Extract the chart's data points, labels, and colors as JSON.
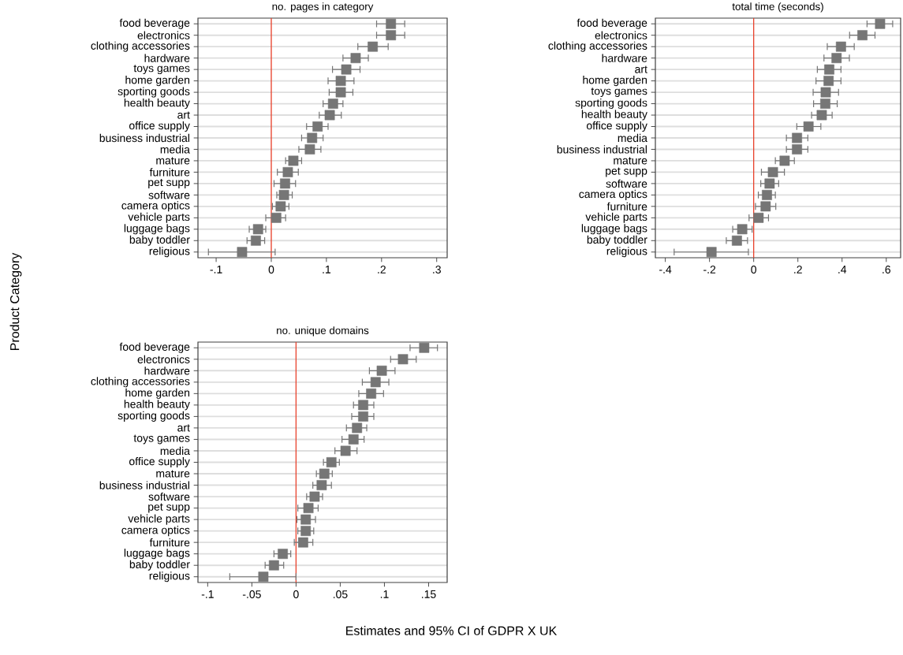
{
  "chart_data": [
    {
      "type": "scatter",
      "orientation": "horizontal",
      "title": "no. pages in category",
      "ylabel": "Product Category",
      "marker": "square",
      "color": "#767676",
      "grid": "y",
      "categories": [
        "food beverage",
        "electronics",
        "clothing accessories",
        "hardware",
        "toys games",
        "home garden",
        "sporting goods",
        "health beauty",
        "art",
        "office supply",
        "business industrial",
        "media",
        "mature",
        "furniture",
        "pet supp",
        "software",
        "camera optics",
        "vehicle parts",
        "luggage bags",
        "baby toddler",
        "religious"
      ],
      "values": [
        0.217,
        0.217,
        0.184,
        0.153,
        0.136,
        0.126,
        0.126,
        0.112,
        0.106,
        0.084,
        0.074,
        0.07,
        0.04,
        0.03,
        0.025,
        0.023,
        0.017,
        0.009,
        -0.024,
        -0.028,
        -0.053
      ],
      "errors": [
        [
          0.191,
          0.242
        ],
        [
          0.191,
          0.242
        ],
        [
          0.157,
          0.212
        ],
        [
          0.13,
          0.176
        ],
        [
          0.111,
          0.161
        ],
        [
          0.103,
          0.15
        ],
        [
          0.105,
          0.148
        ],
        [
          0.094,
          0.13
        ],
        [
          0.087,
          0.127
        ],
        [
          0.064,
          0.103
        ],
        [
          0.055,
          0.094
        ],
        [
          0.05,
          0.09
        ],
        [
          0.026,
          0.055
        ],
        [
          0.011,
          0.049
        ],
        [
          0.005,
          0.044
        ],
        [
          0.01,
          0.038
        ],
        [
          0.002,
          0.032
        ],
        [
          -0.01,
          0.026
        ],
        [
          -0.04,
          -0.01
        ],
        [
          -0.044,
          -0.012
        ],
        [
          -0.114,
          0.007
        ]
      ],
      "xlim": [
        -0.133,
        0.319
      ],
      "xticks": [
        {
          "value": -0.1,
          "label": "-.1"
        },
        0,
        {
          "value": 0.1,
          "label": ".1"
        },
        {
          "value": 0.2,
          "label": ".2"
        },
        {
          "value": 0.3,
          "label": ".3"
        }
      ],
      "ref_lines": [
        {
          "axis": "x",
          "value": 0,
          "color": "#e8412c"
        }
      ]
    },
    {
      "type": "scatter",
      "orientation": "horizontal",
      "title": "total time (seconds)",
      "marker": "square",
      "color": "#767676",
      "grid": "y",
      "categories": [
        "food beverage",
        "electronics",
        "clothing accessories",
        "hardware",
        "art",
        "home garden",
        "toys games",
        "sporting goods",
        "health beauty",
        "office supply",
        "media",
        "business industrial",
        "mature",
        "pet supp",
        "software",
        "camera optics",
        "furniture",
        "vehicle parts",
        "luggage bags",
        "baby toddler",
        "religious"
      ],
      "values": [
        0.572,
        0.492,
        0.395,
        0.375,
        0.342,
        0.339,
        0.326,
        0.324,
        0.308,
        0.248,
        0.196,
        0.196,
        0.14,
        0.087,
        0.072,
        0.06,
        0.054,
        0.022,
        -0.052,
        -0.076,
        -0.191
      ],
      "errors": [
        [
          0.513,
          0.629
        ],
        [
          0.434,
          0.549
        ],
        [
          0.333,
          0.455
        ],
        [
          0.318,
          0.433
        ],
        [
          0.288,
          0.395
        ],
        [
          0.282,
          0.395
        ],
        [
          0.269,
          0.384
        ],
        [
          0.271,
          0.378
        ],
        [
          0.262,
          0.355
        ],
        [
          0.195,
          0.304
        ],
        [
          0.148,
          0.245
        ],
        [
          0.148,
          0.245
        ],
        [
          0.098,
          0.184
        ],
        [
          0.035,
          0.139
        ],
        [
          0.032,
          0.113
        ],
        [
          0.021,
          0.098
        ],
        [
          0.008,
          0.1
        ],
        [
          -0.021,
          0.067
        ],
        [
          -0.095,
          -0.007
        ],
        [
          -0.124,
          -0.028
        ],
        [
          -0.36,
          -0.024
        ]
      ],
      "xlim": [
        -0.445,
        0.665
      ],
      "xticks": [
        {
          "value": -0.4,
          "label": "-.4"
        },
        {
          "value": -0.2,
          "label": "-.2"
        },
        0,
        {
          "value": 0.2,
          "label": ".2"
        },
        {
          "value": 0.4,
          "label": ".4"
        },
        {
          "value": 0.6,
          "label": ".6"
        }
      ],
      "ref_lines": [
        {
          "axis": "x",
          "value": 0,
          "color": "#e8412c"
        }
      ]
    },
    {
      "type": "scatter",
      "orientation": "horizontal",
      "title": "no. unique domains",
      "xlabel": "Estimates and 95% CI of GDPR X UK",
      "marker": "square",
      "color": "#767676",
      "grid": "y",
      "categories": [
        "food beverage",
        "electronics",
        "hardware",
        "clothing accessories",
        "home garden",
        "health beauty",
        "sporting goods",
        "art",
        "toys games",
        "media",
        "office supply",
        "mature",
        "business industrial",
        "software",
        "pet supp",
        "vehicle parts",
        "camera optics",
        "furniture",
        "luggage bags",
        "baby toddler",
        "religious"
      ],
      "values": [
        0.145,
        0.121,
        0.097,
        0.09,
        0.085,
        0.076,
        0.076,
        0.069,
        0.065,
        0.056,
        0.04,
        0.032,
        0.029,
        0.021,
        0.014,
        0.011,
        0.011,
        0.008,
        -0.015,
        -0.025,
        -0.037
      ],
      "errors": [
        [
          0.129,
          0.16
        ],
        [
          0.107,
          0.136
        ],
        [
          0.083,
          0.112
        ],
        [
          0.075,
          0.105
        ],
        [
          0.071,
          0.099
        ],
        [
          0.065,
          0.088
        ],
        [
          0.063,
          0.088
        ],
        [
          0.057,
          0.08
        ],
        [
          0.052,
          0.077
        ],
        [
          0.044,
          0.069
        ],
        [
          0.031,
          0.049
        ],
        [
          0.023,
          0.041
        ],
        [
          0.019,
          0.04
        ],
        [
          0.012,
          0.03
        ],
        [
          0.002,
          0.025
        ],
        [
          0.001,
          0.022
        ],
        [
          0.002,
          0.02
        ],
        [
          -0.002,
          0.019
        ],
        [
          -0.025,
          -0.006
        ],
        [
          -0.035,
          -0.014
        ],
        [
          -0.075,
          0.0
        ]
      ],
      "xlim": [
        -0.111,
        0.171
      ],
      "xticks": [
        {
          "value": -0.1,
          "label": "-.1"
        },
        {
          "value": -0.05,
          "label": "-.05"
        },
        0,
        {
          "value": 0.05,
          "label": ".05"
        },
        {
          "value": 0.1,
          "label": ".1"
        },
        {
          "value": 0.15,
          "label": ".15"
        }
      ],
      "ref_lines": [
        {
          "axis": "x",
          "value": 0,
          "color": "#e8412c"
        }
      ]
    }
  ]
}
